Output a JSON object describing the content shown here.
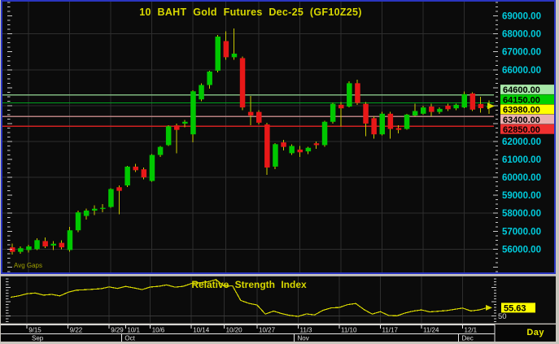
{
  "timeframe_label": "Day",
  "colors": {
    "background": "#0b0b0b",
    "frame": "#c9c5bd",
    "panel_border": "#2a35c0",
    "grid": "#2e2e2e",
    "up": "#00c800",
    "down": "#e81818",
    "wick": "#c8c800",
    "axis_text": "#00ccdd",
    "title_text": "#d8d800",
    "date_text": "#e0e0e0",
    "marker_text": "#000000"
  },
  "chart_data": [
    {
      "type": "candlestick",
      "title": "10 BAHT Gold Futures Dec-25 (GF10Z25)",
      "watermark": "Avg Gaps",
      "ylim": [
        54700,
        69800
      ],
      "y_axis_labels": [
        69000,
        68000,
        67000,
        66000,
        62000,
        61000,
        60000,
        59000,
        58000,
        57000,
        56000
      ],
      "gridline_step": 2000,
      "gridline_indices": [
        2,
        7,
        12,
        17,
        22,
        26,
        30,
        35,
        40,
        45,
        50,
        55
      ],
      "x_ticks": [
        {
          "label": "9/15",
          "index": 2
        },
        {
          "label": "9/22",
          "index": 7
        },
        {
          "label": "9/29",
          "index": 12
        },
        {
          "label": "10/1",
          "index": 14
        },
        {
          "label": "10/6",
          "index": 17
        },
        {
          "label": "10/14",
          "index": 22
        },
        {
          "label": "10/20",
          "index": 26
        },
        {
          "label": "10/27",
          "index": 30
        },
        {
          "label": "11/3",
          "index": 35
        },
        {
          "label": "11/10",
          "index": 40
        },
        {
          "label": "11/17",
          "index": 45
        },
        {
          "label": "11/24",
          "index": 50
        },
        {
          "label": "12/1",
          "index": 55
        }
      ],
      "month_ticks": [
        {
          "label": "Sep",
          "index": 0
        },
        {
          "label": "Oct",
          "index": 14
        },
        {
          "label": "Nov",
          "index": 35
        },
        {
          "label": "Dec",
          "index": 55
        }
      ],
      "horizontal_lines": [
        {
          "price": 64600,
          "color": "#7fb77f",
          "label": "64600.00",
          "label_bg": "#a8e8a8"
        },
        {
          "price": 64150,
          "color": "#00a020",
          "label": "64150.00",
          "label_bg": "#00d000"
        },
        {
          "price": 63400,
          "color": "#b78080",
          "label": "63400.00",
          "label_bg": "#eab0b0"
        },
        {
          "price": 62850,
          "color": "#d02020",
          "label": "62850.00",
          "label_bg": "#f03030"
        }
      ],
      "last_price": {
        "value": 63980,
        "label": "63980.00",
        "label_bg": "#ffff00"
      },
      "dates": [
        "9/11",
        "9/12",
        "9/15",
        "9/16",
        "9/17",
        "9/18",
        "9/19",
        "9/22",
        "9/23",
        "9/24",
        "9/25",
        "9/26",
        "9/29",
        "9/30",
        "10/1",
        "10/2",
        "10/3",
        "10/6",
        "10/7",
        "10/8",
        "10/9",
        "10/10",
        "10/14",
        "10/15",
        "10/16",
        "10/17",
        "10/20",
        "10/21",
        "10/22",
        "10/24",
        "10/27",
        "10/28",
        "10/29",
        "10/30",
        "10/31",
        "11/3",
        "11/4",
        "11/5",
        "11/6",
        "11/7",
        "11/10",
        "11/11",
        "11/12",
        "11/13",
        "11/14",
        "11/17",
        "11/18",
        "11/19",
        "11/20",
        "11/21",
        "11/24",
        "11/25",
        "11/26",
        "11/27",
        "11/28",
        "12/1",
        "12/2",
        "12/3",
        "12/4"
      ],
      "ohlc": [
        [
          56100,
          56300,
          55700,
          55850
        ],
        [
          55850,
          56150,
          55750,
          56050
        ],
        [
          55950,
          56250,
          55800,
          56150
        ],
        [
          56000,
          56600,
          55950,
          56500
        ],
        [
          56450,
          56650,
          56050,
          56150
        ],
        [
          56200,
          56450,
          55950,
          56300
        ],
        [
          56350,
          56500,
          56000,
          56100
        ],
        [
          55950,
          57250,
          55850,
          57050
        ],
        [
          57050,
          58150,
          56950,
          58050
        ],
        [
          57850,
          58250,
          57650,
          58150
        ],
        [
          58150,
          58450,
          57900,
          58250
        ],
        [
          58250,
          58500,
          58050,
          58300
        ],
        [
          58350,
          59400,
          58300,
          59350
        ],
        [
          59450,
          59550,
          57950,
          59250
        ],
        [
          59550,
          60650,
          59450,
          60600
        ],
        [
          60600,
          60750,
          60300,
          60400
        ],
        [
          60450,
          60550,
          59900,
          60000
        ],
        [
          59800,
          61300,
          59750,
          61250
        ],
        [
          61250,
          61750,
          61150,
          61700
        ],
        [
          61800,
          62900,
          61750,
          62850
        ],
        [
          62900,
          63000,
          61350,
          62650
        ],
        [
          63000,
          63200,
          62800,
          63100
        ],
        [
          62400,
          64850,
          61950,
          64800
        ],
        [
          64350,
          65250,
          64250,
          65150
        ],
        [
          65150,
          65950,
          64950,
          65900
        ],
        [
          65950,
          67950,
          65850,
          67850
        ],
        [
          67600,
          68150,
          66550,
          66700
        ],
        [
          66700,
          68300,
          66550,
          66900
        ],
        [
          66650,
          66750,
          63750,
          63900
        ],
        [
          63650,
          64550,
          62900,
          63450
        ],
        [
          63650,
          63750,
          62950,
          63050
        ],
        [
          62950,
          63050,
          60150,
          60550
        ],
        [
          60600,
          61900,
          60450,
          61850
        ],
        [
          61950,
          62100,
          61500,
          61700
        ],
        [
          61350,
          61850,
          61250,
          61750
        ],
        [
          61550,
          61750,
          61150,
          61400
        ],
        [
          61450,
          61700,
          61300,
          61650
        ],
        [
          61900,
          62000,
          61600,
          61800
        ],
        [
          61800,
          63150,
          61700,
          63100
        ],
        [
          63100,
          64150,
          63000,
          64100
        ],
        [
          64050,
          64200,
          62850,
          63850
        ],
        [
          63950,
          65350,
          63900,
          65250
        ],
        [
          65250,
          65450,
          64050,
          64150
        ],
        [
          64100,
          64200,
          62300,
          63000
        ],
        [
          63300,
          63400,
          62150,
          62400
        ],
        [
          62400,
          63650,
          62350,
          63550
        ],
        [
          63550,
          63650,
          62150,
          62700
        ],
        [
          62750,
          62900,
          62450,
          62650
        ],
        [
          62700,
          63550,
          62650,
          63500
        ],
        [
          63450,
          64100,
          63400,
          63700
        ],
        [
          63550,
          64000,
          63500,
          63900
        ],
        [
          63950,
          64100,
          63400,
          63650
        ],
        [
          63650,
          63900,
          63550,
          63820
        ],
        [
          64000,
          64100,
          63700,
          63800
        ],
        [
          63850,
          64100,
          63750,
          64050
        ],
        [
          63900,
          64800,
          63850,
          64640
        ],
        [
          64680,
          64750,
          63700,
          63780
        ],
        [
          64090,
          64500,
          63600,
          63860
        ],
        [
          63900,
          64300,
          63550,
          63980
        ]
      ]
    },
    {
      "type": "line",
      "title": "Relative Strength Index",
      "line_color": "#d8d800",
      "ylim": [
        45,
        77.6
      ],
      "level_line": {
        "value": 50,
        "label": "50"
      },
      "last_value": {
        "value": 55.63,
        "label": "55.63",
        "label_bg": "#ffff00"
      },
      "values": [
        63.0,
        64.0,
        65.5,
        66.0,
        64.5,
        65.0,
        64.0,
        66.5,
        68.0,
        68.3,
        68.6,
        69.0,
        70.3,
        69.2,
        70.6,
        69.6,
        68.4,
        70.2,
        70.7,
        71.7,
        70.1,
        70.7,
        72.7,
        73.2,
        73.8,
        75.4,
        70.7,
        71.1,
        60.8,
        58.7,
        57.5,
        51.2,
        53.3,
        51.5,
        50.2,
        49.6,
        51.3,
        50.6,
        53.8,
        55.5,
        55.8,
        57.8,
        58.6,
        54.4,
        51.2,
        52.9,
        50.2,
        49.9,
        51.9,
        53.3,
        54.1,
        52.7,
        53.2,
        53.6,
        54.5,
        55.4,
        53.4,
        54.1,
        55.63
      ]
    }
  ]
}
